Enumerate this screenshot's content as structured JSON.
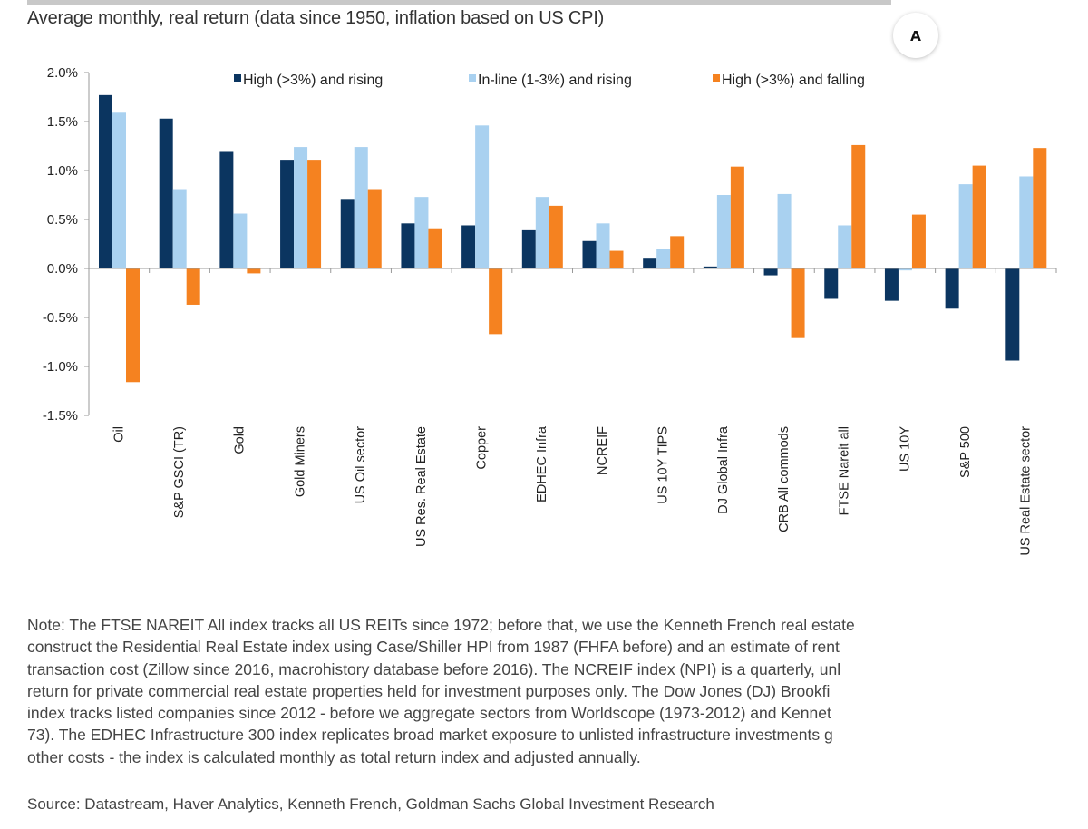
{
  "title": "Average monthly, real return (data since 1950, inflation based on US CPI)",
  "accessibility_button_icon": "accessibility-person-icon",
  "chart_data": {
    "type": "bar",
    "title": "",
    "xlabel": "",
    "ylabel": "",
    "ylim": [
      -1.5,
      2.0
    ],
    "yticks": [
      "2.0%",
      "1.5%",
      "1.0%",
      "0.5%",
      "0.0%",
      "-0.5%",
      "-1.0%",
      "-1.5%"
    ],
    "ytick_values": [
      2.0,
      1.5,
      1.0,
      0.5,
      0.0,
      -0.5,
      -1.0,
      -1.5
    ],
    "grid": false,
    "legend_position": "top",
    "categories": [
      "Oil",
      "S&P GSCI (TR)",
      "Gold",
      "Gold Miners",
      "US Oil sector",
      "US Res. Real Estate",
      "Copper",
      "EDHEC Infra",
      "NCREIF",
      "US 10Y TIPS",
      "DJ Global Infra",
      "CRB All commods",
      "FTSE Nareit all",
      "US 10Y",
      "S&P 500",
      "US Real Estate sector"
    ],
    "series": [
      {
        "name": "High (>3%) and rising",
        "color": "#0b3560",
        "values": [
          1.77,
          1.53,
          1.19,
          1.11,
          0.71,
          0.46,
          0.44,
          0.39,
          0.28,
          0.1,
          0.02,
          -0.07,
          -0.31,
          -0.33,
          -0.41,
          -0.94
        ]
      },
      {
        "name": "In-line (1-3%) and rising",
        "color": "#a9d1f0",
        "values": [
          1.59,
          0.81,
          0.56,
          1.24,
          1.24,
          0.73,
          1.46,
          0.73,
          0.46,
          0.2,
          0.75,
          0.76,
          0.44,
          -0.02,
          0.86,
          0.94
        ]
      },
      {
        "name": "High (>3%) and falling",
        "color": "#f58220",
        "values": [
          -1.16,
          -0.37,
          -0.05,
          1.11,
          0.81,
          0.41,
          -0.67,
          0.64,
          0.18,
          0.33,
          1.04,
          -0.71,
          1.26,
          0.55,
          1.05,
          1.23
        ]
      }
    ]
  },
  "note_lines": [
    "Note: The FTSE NAREIT All index tracks all US REITs since 1972; before that, we use the Kenneth French real estate",
    "construct the Residential Real Estate index using Case/Shiller HPI from 1987 (FHFA before) and an estimate of rent",
    "transaction cost (Zillow since 2016, macrohistory database before 2016). The NCREIF index (NPI) is a quarterly, unl",
    "return for private commercial real estate properties held for investment purposes only. The Dow Jones (DJ) Brookfi",
    "index tracks listed companies since 2012 - before we aggregate sectors from Worldscope (1973-2012) and Kennet",
    "73). The EDHEC Infrastructure 300 index replicates broad market exposure to unlisted infrastructure investments g",
    "other costs - the index is calculated monthly as total return index and adjusted annually."
  ],
  "source": "Source: Datastream, Haver Analytics, Kenneth French, Goldman Sachs Global Investment Research"
}
